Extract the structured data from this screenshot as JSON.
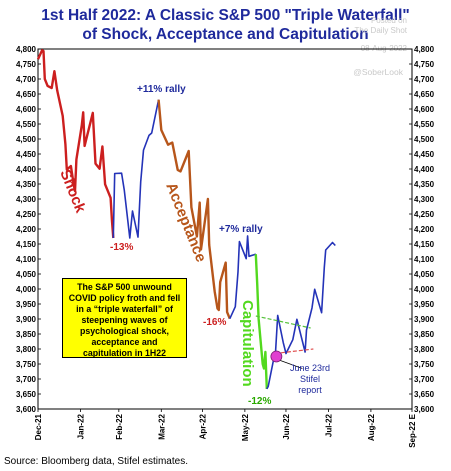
{
  "title_line1": "1st Half 2022: A Classic S&P 500 \"Triple Waterfall\"",
  "title_line2": "of Shock, Acceptance and Capitulation",
  "watermark": {
    "line1": "Posted on",
    "line2": "The Daily Shot",
    "line3": "08-Aug-2022",
    "handle": "@SoberLook"
  },
  "note_text": "The S&P 500 unwound COVID policy froth and fell in a “triple waterfall” of steepening waves of psychological shock, acceptance and capitulation in 1H22",
  "source": "Source: Bloomberg data, Stifel estimates.",
  "colors": {
    "shock": "#cc1f1f",
    "acceptance": "#b7561b",
    "capitulation": "#52d91e",
    "rally": "#2433b8",
    "title": "#1f2a9c",
    "marker": "#e040d0"
  },
  "chart_data": {
    "type": "line",
    "x_ticks": [
      "Dec-21",
      "Jan-22",
      "Feb-22",
      "Mar-22",
      "Apr-22",
      "May-22",
      "Jun-22",
      "Jul-22",
      "Aug-22",
      "Sep-22 E"
    ],
    "ylim": [
      3600,
      4800
    ],
    "y_ticks": [
      3600,
      3650,
      3700,
      3750,
      3800,
      3850,
      3900,
      3950,
      4000,
      4050,
      4100,
      4150,
      4200,
      4250,
      4300,
      4350,
      4400,
      4450,
      4500,
      4550,
      4600,
      4650,
      4700,
      4750,
      4800
    ],
    "series": [
      {
        "segment": "shock",
        "points": [
          [
            "2021-12-31",
            4766
          ],
          [
            "2022-01-03",
            4796
          ],
          [
            "2022-01-04",
            4793
          ],
          [
            "2022-01-05",
            4700
          ],
          [
            "2022-01-07",
            4677
          ],
          [
            "2022-01-10",
            4670
          ],
          [
            "2022-01-12",
            4726
          ],
          [
            "2022-01-14",
            4662
          ],
          [
            "2022-01-18",
            4577
          ],
          [
            "2022-01-20",
            4483
          ],
          [
            "2022-01-21",
            4398
          ],
          [
            "2022-01-24",
            4410
          ],
          [
            "2022-01-26",
            4350
          ],
          [
            "2022-01-27",
            4326
          ],
          [
            "2022-01-28",
            4432
          ],
          [
            "2022-02-01",
            4546
          ],
          [
            "2022-02-02",
            4589
          ],
          [
            "2022-02-03",
            4477
          ],
          [
            "2022-02-09",
            4587
          ],
          [
            "2022-02-11",
            4418
          ],
          [
            "2022-02-14",
            4401
          ],
          [
            "2022-02-16",
            4475
          ],
          [
            "2022-02-18",
            4349
          ],
          [
            "2022-02-22",
            4304
          ],
          [
            "2022-02-23",
            4226
          ],
          [
            "2022-02-24",
            4170
          ]
        ]
      },
      {
        "segment": "rally",
        "points": [
          [
            "2022-02-24",
            4170
          ],
          [
            "2022-02-25",
            4385
          ],
          [
            "2022-03-02",
            4386
          ],
          [
            "2022-03-04",
            4329
          ],
          [
            "2022-03-08",
            4170
          ],
          [
            "2022-03-10",
            4260
          ],
          [
            "2022-03-14",
            4173
          ],
          [
            "2022-03-16",
            4357
          ],
          [
            "2022-03-18",
            4463
          ],
          [
            "2022-03-22",
            4512
          ],
          [
            "2022-03-24",
            4520
          ],
          [
            "2022-03-29",
            4631
          ]
        ]
      },
      {
        "segment": "acceptance",
        "points": [
          [
            "2022-03-29",
            4631
          ],
          [
            "2022-03-31",
            4530
          ],
          [
            "2022-04-05",
            4481
          ],
          [
            "2022-04-08",
            4488
          ],
          [
            "2022-04-12",
            4397
          ],
          [
            "2022-04-14",
            4392
          ],
          [
            "2022-04-20",
            4460
          ],
          [
            "2022-04-22",
            4272
          ],
          [
            "2022-04-26",
            4175
          ],
          [
            "2022-04-28",
            4288
          ],
          [
            "2022-04-29",
            4132
          ],
          [
            "2022-05-04",
            4300
          ],
          [
            "2022-05-05",
            4147
          ],
          [
            "2022-05-09",
            3991
          ],
          [
            "2022-05-11",
            3935
          ],
          [
            "2022-05-12",
            3930
          ],
          [
            "2022-05-13",
            4023
          ],
          [
            "2022-05-17",
            4088
          ],
          [
            "2022-05-18",
            3923
          ],
          [
            "2022-05-20",
            3901
          ]
        ]
      },
      {
        "segment": "rally",
        "points": [
          [
            "2022-05-20",
            3901
          ],
          [
            "2022-05-24",
            3941
          ],
          [
            "2022-05-26",
            4057
          ],
          [
            "2022-05-27",
            4158
          ],
          [
            "2022-06-01",
            4101
          ],
          [
            "2022-06-02",
            4177
          ],
          [
            "2022-06-03",
            4109
          ],
          [
            "2022-06-08",
            4116
          ]
        ]
      },
      {
        "segment": "capitulation",
        "points": [
          [
            "2022-06-08",
            4116
          ],
          [
            "2022-06-09",
            4018
          ],
          [
            "2022-06-10",
            3901
          ],
          [
            "2022-06-13",
            3750
          ],
          [
            "2022-06-14",
            3735
          ],
          [
            "2022-06-15",
            3790
          ],
          [
            "2022-06-16",
            3667
          ]
        ]
      },
      {
        "segment": "rally",
        "points": [
          [
            "2022-06-16",
            3667
          ],
          [
            "2022-06-17",
            3675
          ],
          [
            "2022-06-21",
            3765
          ],
          [
            "2022-06-22",
            3760
          ],
          [
            "2022-06-24",
            3912
          ],
          [
            "2022-06-28",
            3822
          ],
          [
            "2022-06-30",
            3785
          ],
          [
            "2022-07-05",
            3831
          ],
          [
            "2022-07-08",
            3899
          ],
          [
            "2022-07-14",
            3790
          ],
          [
            "2022-07-15",
            3863
          ],
          [
            "2022-07-19",
            3937
          ],
          [
            "2022-07-21",
            3999
          ],
          [
            "2022-07-26",
            3921
          ],
          [
            "2022-07-28",
            4072
          ],
          [
            "2022-07-29",
            4130
          ],
          [
            "2022-08-03",
            4155
          ],
          [
            "2022-08-05",
            4145
          ]
        ]
      }
    ],
    "trend_lines": [
      {
        "color": "#55c23a",
        "points": [
          [
            "2022-06-08",
            3910
          ],
          [
            "2022-07-18",
            3870
          ]
        ]
      },
      {
        "color": "#e05050",
        "points": [
          [
            "2022-06-22",
            3785
          ],
          [
            "2022-07-20",
            3800
          ]
        ]
      }
    ],
    "marker": {
      "date": "2022-06-23",
      "value": 3775
    },
    "annotations": [
      {
        "text": "Shock",
        "color": "#cc1f1f",
        "style": "segment-label"
      },
      {
        "text": "Acceptance",
        "color": "#b7561b",
        "style": "segment-label"
      },
      {
        "text": "Capitulation",
        "color": "#52d91e",
        "style": "segment-label"
      },
      {
        "text": "+11% rally",
        "color": "#1f2a9c"
      },
      {
        "text": "+7% rally",
        "color": "#1f2a9c"
      },
      {
        "text": "-13%",
        "color": "#cc1f1f"
      },
      {
        "text": "-16%",
        "color": "#cc1f1f"
      },
      {
        "text": "-12%",
        "color": "#2aa800"
      },
      {
        "text": "June 23rd\nStifel\nreport",
        "color": "#1f2a9c"
      }
    ]
  }
}
